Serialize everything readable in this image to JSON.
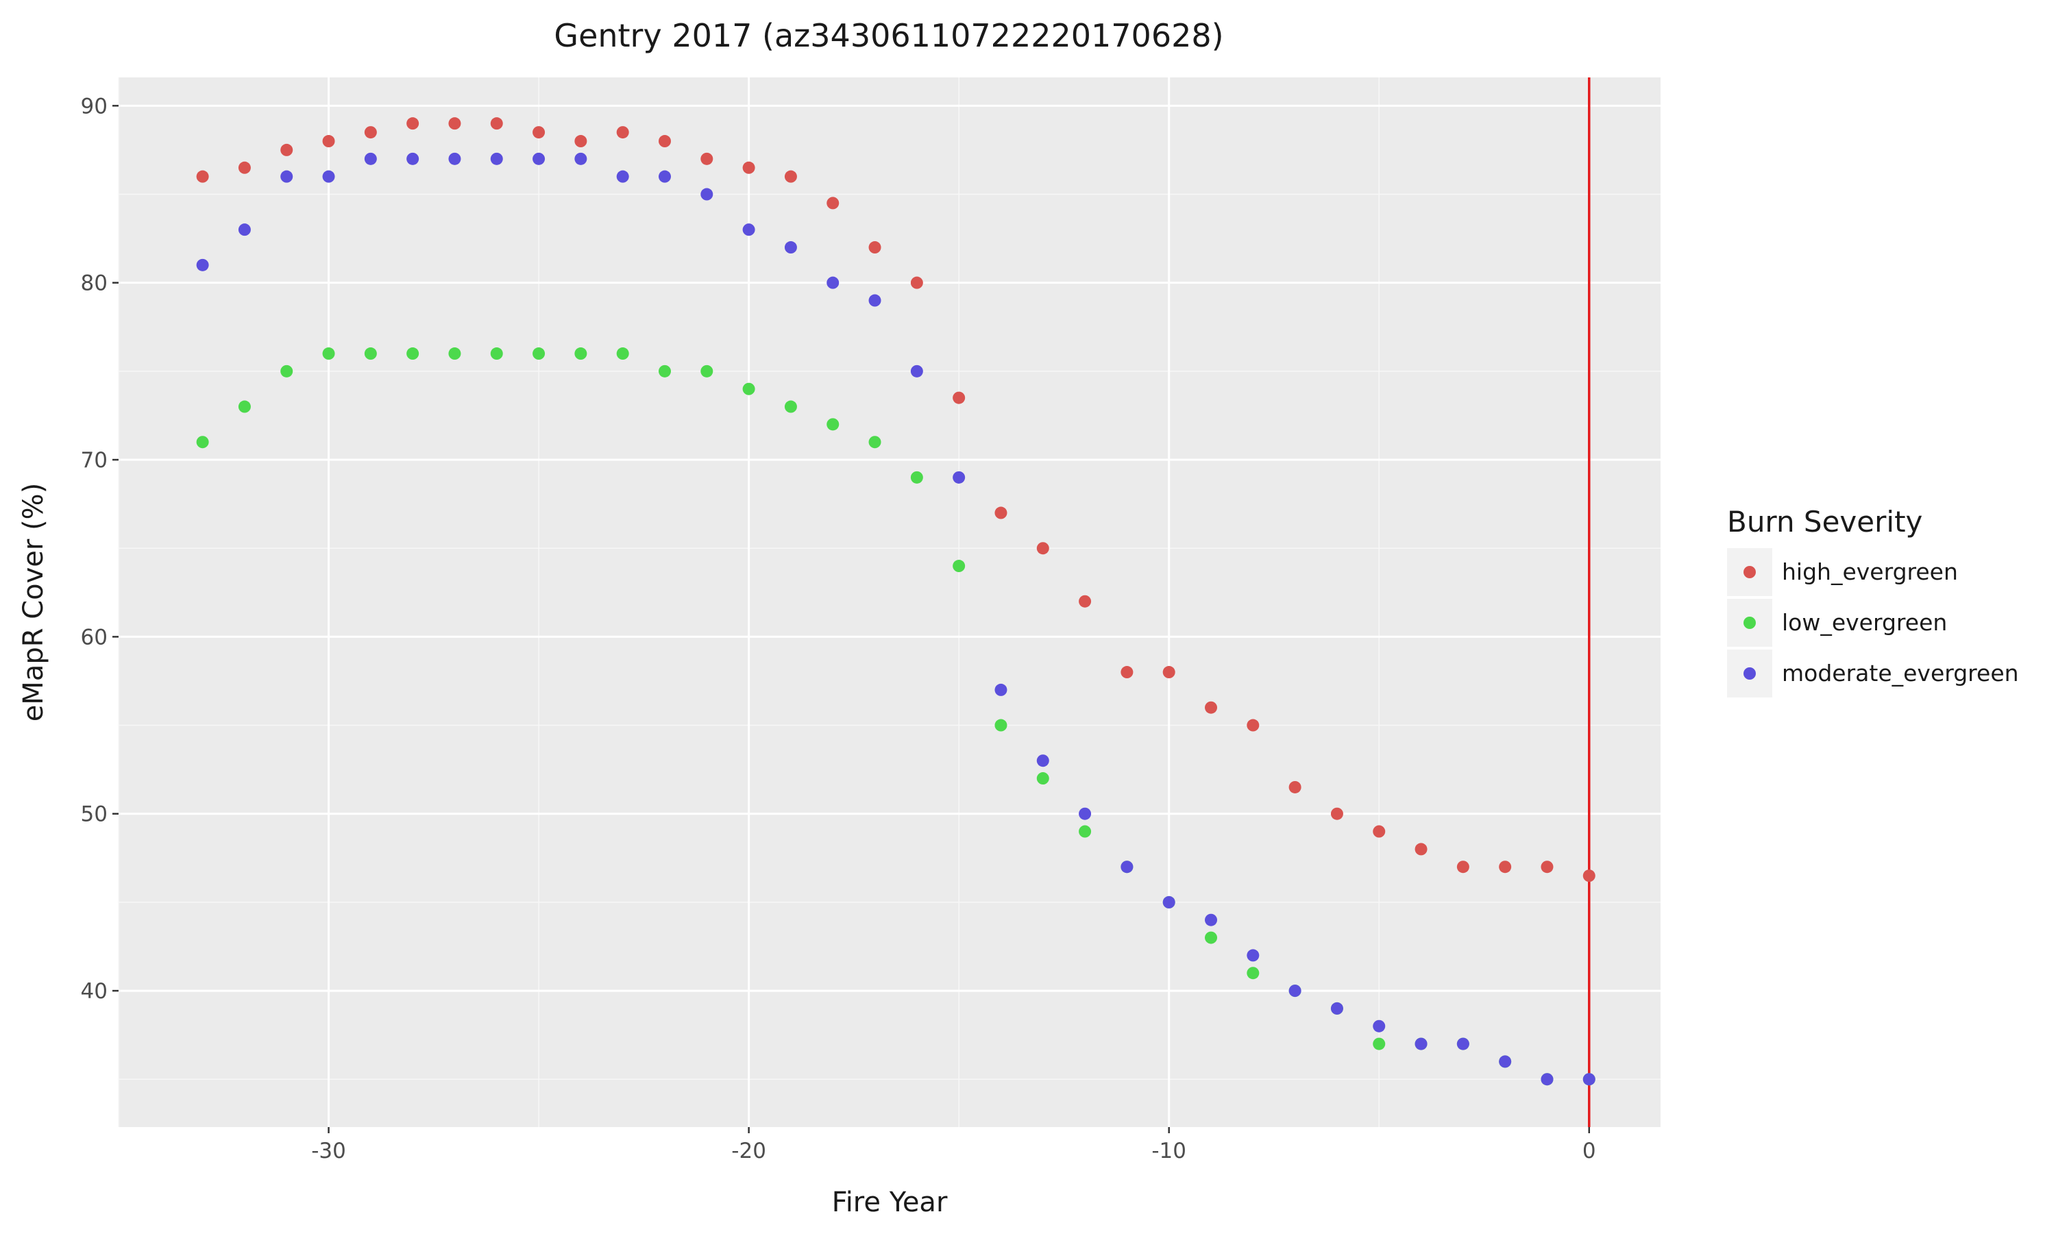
{
  "chart_data": {
    "type": "scatter",
    "title": "Gentry 2017 (az34306110722220170628)",
    "xlabel": "Fire Year",
    "ylabel": "eMapR Cover (%)",
    "xlim": [
      -35,
      1.7
    ],
    "ylim": [
      32.3,
      91.6
    ],
    "xticks": [
      -30,
      -20,
      -10,
      0
    ],
    "xtick_labels": [
      "-30",
      "-20",
      "-10",
      "0"
    ],
    "yticks": [
      40,
      50,
      60,
      70,
      80,
      90
    ],
    "ytick_labels": [
      "40",
      "50",
      "60",
      "70",
      "80",
      "90"
    ],
    "grid": true,
    "legend": {
      "title": "Burn Severity",
      "placement": "right"
    },
    "vline": {
      "x": 0,
      "color": "#e41a1c"
    },
    "series": [
      {
        "name": "high_evergreen",
        "color": "#d9534f",
        "x": [
          -33,
          -32,
          -31,
          -30,
          -29,
          -28,
          -27,
          -26,
          -25,
          -24,
          -23,
          -22,
          -21,
          -20,
          -19,
          -18,
          -17,
          -16,
          -15,
          -14,
          -13,
          -12,
          -11,
          -10,
          -9,
          -8,
          -7,
          -6,
          -5,
          -4,
          -3,
          -2,
          -1,
          0
        ],
        "y": [
          86,
          86.5,
          87.5,
          88,
          88.5,
          89,
          89,
          89,
          88.5,
          88,
          88.5,
          88,
          87,
          86.5,
          86,
          84.5,
          82,
          80,
          73.5,
          67,
          65,
          62,
          58,
          58,
          56,
          55,
          51.5,
          50,
          49,
          48,
          47,
          47,
          47,
          46.5
        ]
      },
      {
        "name": "low_evergreen",
        "color": "#4cd94c",
        "x": [
          -33,
          -32,
          -31,
          -30,
          -29,
          -28,
          -27,
          -26,
          -25,
          -24,
          -23,
          -22,
          -21,
          -20,
          -19,
          -18,
          -17,
          -16,
          -15,
          -14,
          -13,
          -12,
          -11,
          -10,
          -9,
          -8,
          -7,
          -6,
          -5,
          -4,
          -3,
          -2,
          -1,
          0
        ],
        "y": [
          71,
          73,
          75,
          76,
          76,
          76,
          76,
          76,
          76,
          76,
          76,
          75,
          75,
          74,
          73,
          72,
          71,
          69,
          64,
          55,
          52,
          49,
          47,
          45,
          43,
          41,
          40,
          39,
          37,
          37,
          37,
          36,
          35,
          35
        ]
      },
      {
        "name": "moderate_evergreen",
        "color": "#5b4fdc",
        "x": [
          -33,
          -32,
          -31,
          -30,
          -29,
          -28,
          -27,
          -26,
          -25,
          -24,
          -23,
          -22,
          -21,
          -20,
          -19,
          -18,
          -17,
          -16,
          -15,
          -14,
          -13,
          -12,
          -11,
          -10,
          -9,
          -8,
          -7,
          -6,
          -5,
          -4,
          -3,
          -2,
          -1,
          0
        ],
        "y": [
          81,
          83,
          86,
          86,
          87,
          87,
          87,
          87,
          87,
          87,
          86,
          86,
          85,
          83,
          82,
          80,
          79,
          75,
          69,
          57,
          53,
          50,
          47,
          45,
          44,
          42,
          40,
          39,
          38,
          37,
          37,
          36,
          35,
          35
        ]
      }
    ]
  }
}
